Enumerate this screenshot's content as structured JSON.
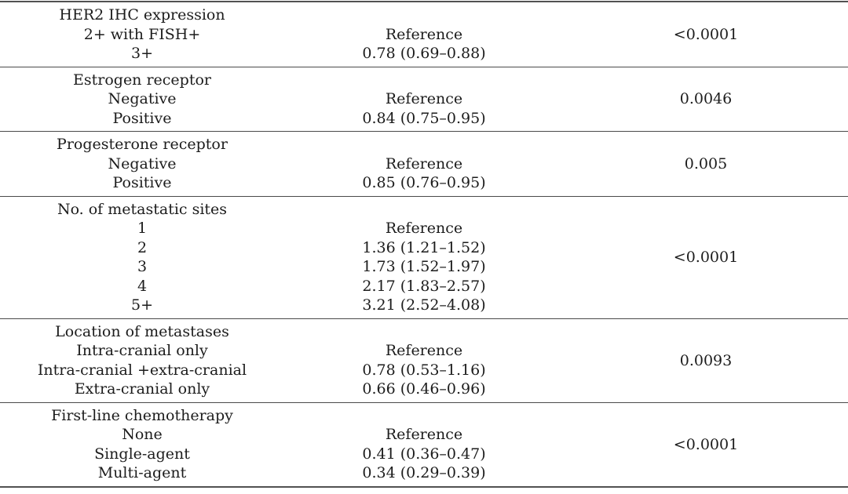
{
  "table": {
    "sections": [
      {
        "header": "HER2 IHC expression",
        "rows": [
          {
            "label": "2+ with FISH+",
            "value": "Reference"
          },
          {
            "label": "3+",
            "value": "0.78 (0.69–0.88)"
          }
        ],
        "p_value": "<0.0001"
      },
      {
        "header": "Estrogen receptor",
        "rows": [
          {
            "label": "Negative",
            "value": "Reference"
          },
          {
            "label": "Positive",
            "value": "0.84 (0.75–0.95)"
          }
        ],
        "p_value": "0.0046"
      },
      {
        "header": "Progesterone receptor",
        "rows": [
          {
            "label": "Negative",
            "value": "Reference"
          },
          {
            "label": "Positive",
            "value": "0.85 (0.76–0.95)"
          }
        ],
        "p_value": "0.005"
      },
      {
        "header": "No. of metastatic sites",
        "rows": [
          {
            "label": "1",
            "value": "Reference"
          },
          {
            "label": "2",
            "value": "1.36 (1.21–1.52)"
          },
          {
            "label": "3",
            "value": "1.73 (1.52–1.97)"
          },
          {
            "label": "4",
            "value": "2.17 (1.83–2.57)"
          },
          {
            "label": "5+",
            "value": "3.21 (2.52–4.08)"
          }
        ],
        "p_value": "<0.0001"
      },
      {
        "header": "Location of metastases",
        "rows": [
          {
            "label": "Intra-cranial only",
            "value": "Reference"
          },
          {
            "label": "Intra-cranial +extra-cranial",
            "value": "0.78 (0.53–1.16)"
          },
          {
            "label": "Extra-cranial only",
            "value": "0.66 (0.46–0.96)"
          }
        ],
        "p_value": "0.0093"
      },
      {
        "header": "First-line chemotherapy",
        "rows": [
          {
            "label": "None",
            "value": "Reference"
          },
          {
            "label": "Single-agent",
            "value": "0.41 (0.36–0.47)"
          },
          {
            "label": "Multi-agent",
            "value": "0.34 (0.29–0.39)"
          }
        ],
        "p_value": "<0.0001"
      }
    ]
  },
  "colors": {
    "background": "#ffffff",
    "text": "#1c1c1c",
    "rule": "#4a4a4a"
  }
}
